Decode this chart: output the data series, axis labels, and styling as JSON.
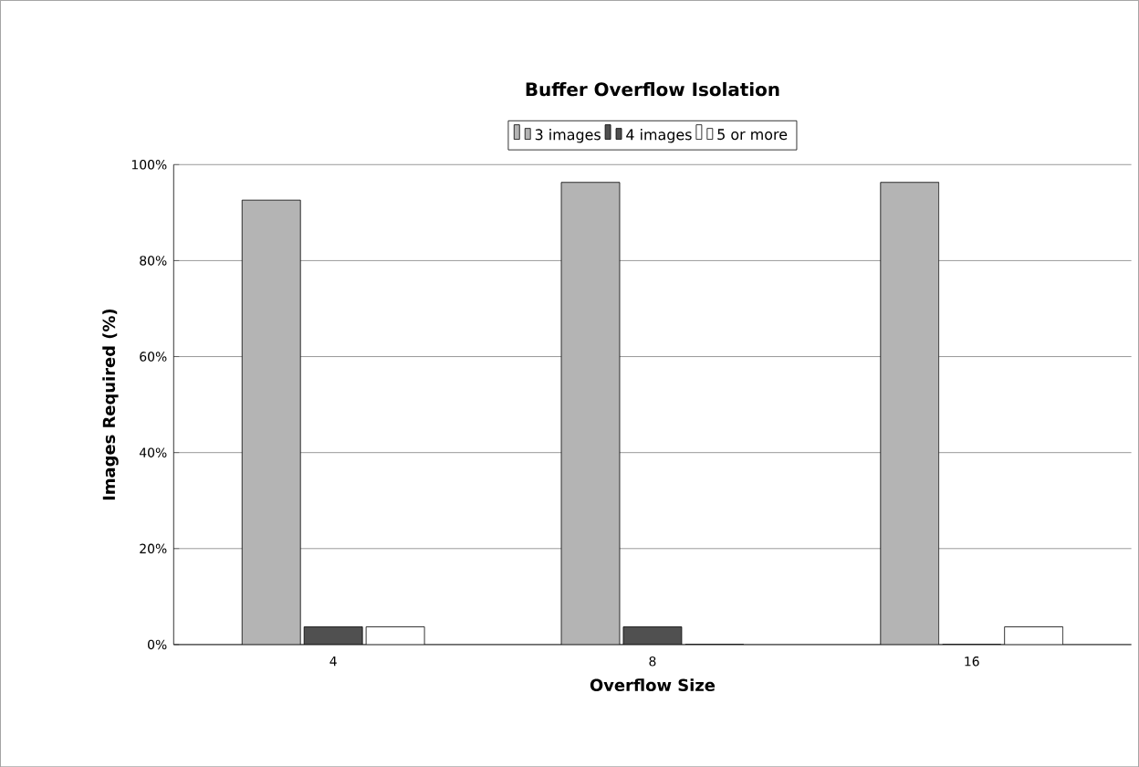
{
  "chart_data": {
    "type": "bar",
    "title": "Buffer Overflow Isolation",
    "xlabel": "Overflow Size",
    "ylabel": "Images Required (%)",
    "categories": [
      "4",
      "8",
      "16"
    ],
    "series": [
      {
        "name": "3 images",
        "color": "#b4b4b4",
        "values": [
          92.6,
          96.3,
          96.3
        ]
      },
      {
        "name": "4 images",
        "color": "#505050",
        "values": [
          3.7,
          3.7,
          0
        ]
      },
      {
        "name": "5 or more",
        "color": "#ffffff",
        "values": [
          3.7,
          0,
          3.7
        ]
      }
    ],
    "ylim": [
      0,
      100
    ],
    "yticks": [
      {
        "value": 0,
        "label": "0%"
      },
      {
        "value": 20,
        "label": "20%"
      },
      {
        "value": 40,
        "label": "40%"
      },
      {
        "value": 60,
        "label": "60%"
      },
      {
        "value": 80,
        "label": "80%"
      },
      {
        "value": 100,
        "label": "100%"
      }
    ],
    "grid": "y",
    "legend": "top"
  }
}
